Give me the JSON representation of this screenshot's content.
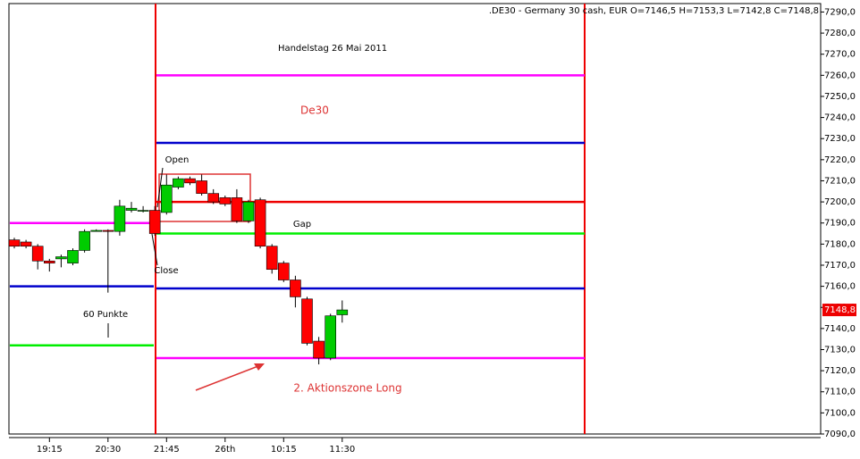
{
  "chart_data": {
    "type": "candlestick",
    "header": ".DE30 - Germany 30 cash, EUR O=7146,5 H=7153,3 L=7142,8 C=7148,8",
    "title": "Handelstag 26 Mai 2011",
    "annotations": {
      "symbol": "De30",
      "open": "Open",
      "close": "Close",
      "gap": "Gap",
      "range": "60 Punkte",
      "zone": "2. Aktionszone Long"
    },
    "categories": [
      null,
      null,
      null,
      "19:15",
      null,
      null,
      null,
      null,
      "20:30",
      null,
      null,
      null,
      null,
      "21:45",
      null,
      null,
      null,
      null,
      "26th",
      null,
      null,
      null,
      null,
      "10:15",
      null,
      null,
      null,
      null,
      "11:30"
    ],
    "series": [
      {
        "up_color": "#00cc00",
        "down_color": "#ff0000",
        "open": [
          7182,
          7181,
          7179,
          7172,
          7173,
          7171,
          7177,
          7186,
          7186.5,
          7186,
          7196,
          7196,
          7196,
          7195,
          7207,
          7211,
          7210,
          7204,
          7202,
          7202,
          7191,
          7201,
          7179,
          7171,
          7163,
          7154,
          7134,
          7126,
          7146.5
        ],
        "high": [
          7183,
          7182,
          7180,
          7173,
          7175,
          7178,
          7187,
          7187,
          7187,
          7201,
          7200,
          7198,
          7198,
          7213,
          7212,
          7212,
          7213,
          7206,
          7203,
          7206,
          7201,
          7202,
          7180,
          7172,
          7165,
          7155,
          7136,
          7147,
          7153.3
        ],
        "low": [
          7178,
          7178,
          7168,
          7167,
          7169,
          7170,
          7176,
          7186,
          7157,
          7184,
          7195,
          7195,
          7184,
          7194,
          7206,
          7208,
          7203,
          7199,
          7198,
          7190,
          7190,
          7178,
          7166,
          7162,
          7150,
          7132,
          7123,
          7125,
          7142.8
        ],
        "close": [
          7179,
          7179,
          7172,
          7171,
          7174,
          7177,
          7186,
          7186.5,
          7186,
          7198,
          7197,
          7196,
          7185,
          7208,
          7211,
          7209,
          7204,
          7200,
          7199,
          7191,
          7200,
          7179,
          7168,
          7163,
          7155,
          7133,
          7126,
          7146,
          7148.8
        ]
      }
    ],
    "prior_levels": [
      {
        "value": 7190,
        "color": "#ff00ff"
      },
      {
        "value": 7160,
        "color": "#0000cc"
      },
      {
        "value": 7132,
        "color": "#00ee00"
      }
    ],
    "levels": [
      {
        "value": 7260,
        "color": "#ff00ff"
      },
      {
        "value": 7228,
        "color": "#0000cc"
      },
      {
        "value": 7200,
        "color": "#ee0000"
      },
      {
        "value": 7185,
        "color": "#00ee00"
      },
      {
        "value": 7159,
        "color": "#0000cc"
      },
      {
        "value": 7126,
        "color": "#ff00ff"
      }
    ],
    "last_price": {
      "value": 7148.8,
      "label": "7148,8"
    },
    "ylim": [
      7090,
      7294
    ],
    "yticks": [
      {
        "value": 7090,
        "label": "7090,0"
      },
      {
        "value": 7100,
        "label": "7100,0"
      },
      {
        "value": 7110,
        "label": "7110,0"
      },
      {
        "value": 7120,
        "label": "7120,0"
      },
      {
        "value": 7130,
        "label": "7130,0"
      },
      {
        "value": 7140,
        "label": "7140,0"
      },
      {
        "value": 7150,
        "label": "7150,0"
      },
      {
        "value": 7160,
        "label": "7160,0"
      },
      {
        "value": 7170,
        "label": "7170,0"
      },
      {
        "value": 7180,
        "label": "7180,0"
      },
      {
        "value": 7190,
        "label": "7190,0"
      },
      {
        "value": 7200,
        "label": "7200,0"
      },
      {
        "value": 7210,
        "label": "7210,0"
      },
      {
        "value": 7220,
        "label": "7220,0"
      },
      {
        "value": 7230,
        "label": "7230,0"
      },
      {
        "value": 7240,
        "label": "7240,0"
      },
      {
        "value": 7250,
        "label": "7250,0"
      },
      {
        "value": 7260,
        "label": "7260,0"
      },
      {
        "value": 7270,
        "label": "7270,0"
      },
      {
        "value": 7280,
        "label": "7280,0"
      },
      {
        "value": 7290,
        "label": "7290,0"
      }
    ]
  }
}
